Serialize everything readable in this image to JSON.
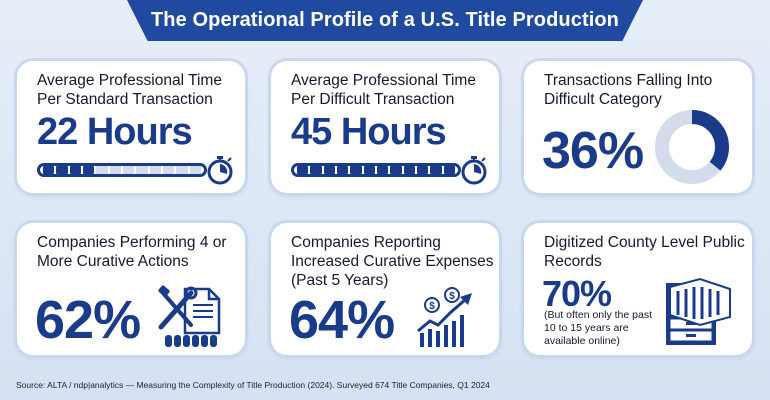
{
  "header": {
    "title": "The Operational Profile of a U.S. Title Production"
  },
  "cards": [
    {
      "label": "Average Professional Time Per Standard Transaction",
      "value": "22 Hours",
      "progress_segments_filled": 4,
      "progress_segments_total": 12
    },
    {
      "label": "Average Professional Time Per Difficult Transaction",
      "value": "45 Hours",
      "progress_segments_filled": 12,
      "progress_segments_total": 12
    },
    {
      "label": "Transactions Falling Into Difficult Category",
      "value": "36%",
      "donut_fraction": 0.36
    },
    {
      "label": "Companies Performing 4 or More Curative Actions",
      "value": "62%"
    },
    {
      "label": "Companies Reporting Increased Curative Expenses (Past 5 Years)",
      "value": "64%"
    },
    {
      "label": "Digitized County Level Public Records",
      "value": "70%",
      "note": "(But often only the past 10 to 15 years are available online)"
    }
  ],
  "colors": {
    "brand": "#1f4aa0",
    "accent": "#1a3b8a",
    "track": "#d3dcea"
  },
  "icons": [
    "stopwatch-icon",
    "donut-chart-icon",
    "tools-document-icon",
    "rising-chart-dollar-icon",
    "file-cabinet-icon"
  ],
  "footer": {
    "source": "Source: ALTA / ndp|analytics — Measuring the Complexity of Title Production (2024). Surveyed 674 Title Companies, Q1 2024"
  }
}
